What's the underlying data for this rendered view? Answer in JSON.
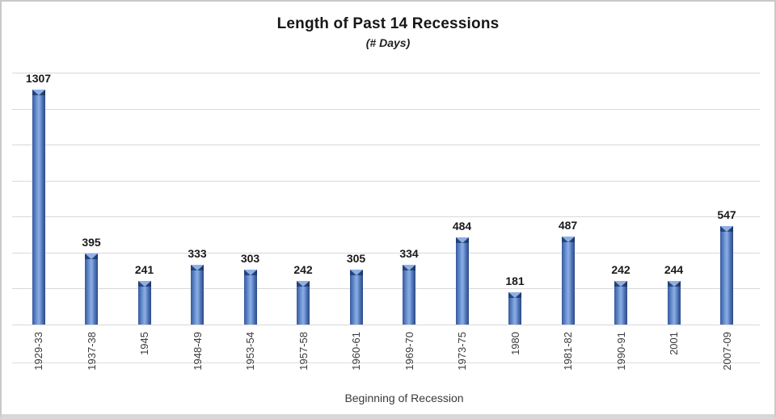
{
  "chart_data": {
    "type": "bar",
    "title": "Length of Past 14 Recessions",
    "subtitle": "(# Days)",
    "xlabel": "Beginning of Recession",
    "ylabel": "",
    "categories": [
      "1929-33",
      "1937-38",
      "1945",
      "1948-49",
      "1953-54",
      "1957-58",
      "1960-61",
      "1969-70",
      "1973-75",
      "1980",
      "1981-82",
      "1990-91",
      "2001",
      "2007-09"
    ],
    "values": [
      1307,
      395,
      241,
      333,
      303,
      242,
      305,
      334,
      484,
      181,
      487,
      242,
      244,
      547
    ],
    "ylim": [
      0,
      1400
    ],
    "gridline_interval": 200,
    "grid": true,
    "legend": "none",
    "data_labels": true,
    "y_axis_tick_labels_visible": false,
    "colors": {
      "bar_main": "#4472c4",
      "bar_edge_dark": "#2c4a87",
      "bar_mid_light": "#85a8e0",
      "bar_notch_light": "#8fb0e4",
      "bar_top_dark": "#203c72",
      "gridline": "#d9d9d9",
      "title_text": "#171717",
      "axis_text": "#3a3a3a",
      "frame_border": "#c9c9c9"
    }
  }
}
